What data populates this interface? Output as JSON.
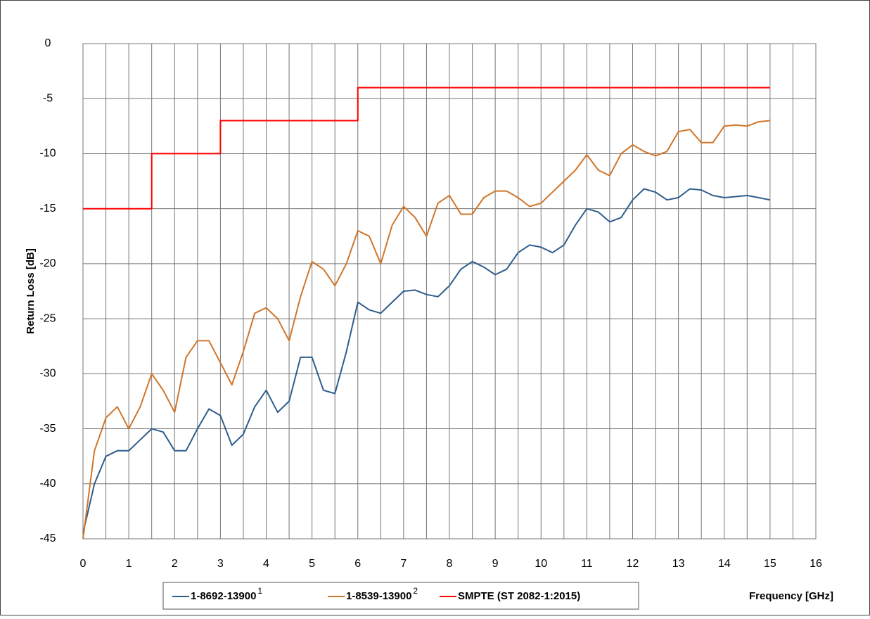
{
  "chart_data": {
    "type": "line",
    "xlabel": "Frequency [GHz]",
    "ylabel": "Return Loss [dB]",
    "xlim": [
      0,
      16
    ],
    "ylim": [
      -45,
      0
    ],
    "xticks": [
      0,
      1,
      2,
      3,
      4,
      5,
      6,
      7,
      8,
      9,
      10,
      11,
      12,
      13,
      14,
      15,
      16
    ],
    "yticks": [
      0,
      -5,
      -10,
      -15,
      -20,
      -25,
      -30,
      -35,
      -40,
      -45
    ],
    "x_minor_gridlines": [
      0.5,
      1.5,
      2.5,
      3.5,
      4.5,
      5.5,
      6.5,
      7.5,
      8.5,
      9.5,
      10.5,
      11.5,
      12.5,
      13.5,
      14.5,
      15.5
    ],
    "grid": true,
    "legend": "bottom",
    "series": [
      {
        "name": "1-8692-13900",
        "superscript": "1",
        "color": "#2e5d8c",
        "x": [
          0,
          0.25,
          0.5,
          0.75,
          1,
          1.25,
          1.5,
          1.75,
          2,
          2.25,
          2.5,
          2.75,
          3,
          3.25,
          3.5,
          3.75,
          4,
          4.25,
          4.5,
          4.75,
          5,
          5.25,
          5.5,
          5.75,
          6,
          6.25,
          6.5,
          6.75,
          7,
          7.25,
          7.5,
          7.75,
          8,
          8.25,
          8.5,
          8.75,
          9,
          9.25,
          9.5,
          9.75,
          10,
          10.25,
          10.5,
          10.75,
          11,
          11.25,
          11.5,
          11.75,
          12,
          12.25,
          12.5,
          12.75,
          13,
          13.25,
          13.5,
          13.75,
          14,
          14.25,
          14.5,
          14.75,
          15
        ],
        "values": [
          -44.5,
          -40,
          -37.5,
          -37,
          -37,
          -36,
          -35,
          -35.3,
          -37,
          -37,
          -35,
          -33.2,
          -33.8,
          -36.5,
          -35.5,
          -33,
          -31.5,
          -33.5,
          -32.5,
          -28.5,
          -28.5,
          -31.5,
          -31.8,
          -28,
          -23.5,
          -24.2,
          -24.5,
          -23.5,
          -22.5,
          -22.4,
          -22.8,
          -23,
          -22,
          -20.5,
          -19.8,
          -20.3,
          -21,
          -20.5,
          -19,
          -18.3,
          -18.5,
          -19,
          -18.3,
          -16.5,
          -15,
          -15.3,
          -16.2,
          -15.8,
          -14.2,
          -13.2,
          -13.5,
          -14.2,
          -14,
          -13.2,
          -13.3,
          -13.8,
          -14,
          -13.9,
          -13.8,
          -14,
          -14.2
        ]
      },
      {
        "name": "1-8539-13900",
        "superscript": "2",
        "color": "#d0752a",
        "x": [
          0,
          0.25,
          0.5,
          0.75,
          1,
          1.25,
          1.5,
          1.75,
          2,
          2.25,
          2.5,
          2.75,
          3,
          3.25,
          3.5,
          3.75,
          4,
          4.25,
          4.5,
          4.75,
          5,
          5.25,
          5.5,
          5.75,
          6,
          6.25,
          6.5,
          6.75,
          7,
          7.25,
          7.5,
          7.75,
          8,
          8.25,
          8.5,
          8.75,
          9,
          9.25,
          9.5,
          9.75,
          10,
          10.25,
          10.5,
          10.75,
          11,
          11.25,
          11.5,
          11.75,
          12,
          12.25,
          12.5,
          12.75,
          13,
          13.25,
          13.5,
          13.75,
          14,
          14.25,
          14.5,
          14.75,
          15
        ],
        "values": [
          -45,
          -37,
          -34,
          -33,
          -35,
          -33,
          -30,
          -31.5,
          -33.5,
          -28.5,
          -27,
          -27,
          -29,
          -31,
          -28,
          -24.5,
          -24,
          -25,
          -27,
          -23,
          -19.8,
          -20.5,
          -22,
          -20,
          -17,
          -17.5,
          -20,
          -16.5,
          -14.8,
          -15.8,
          -17.5,
          -14.5,
          -13.8,
          -15.5,
          -15.5,
          -14,
          -13.4,
          -13.4,
          -14,
          -14.8,
          -14.5,
          -13.5,
          -12.5,
          -11.5,
          -10.1,
          -11.5,
          -12,
          -10,
          -9.2,
          -9.8,
          -10.2,
          -9.8,
          -8,
          -7.8,
          -9,
          -9,
          -7.5,
          -7.4,
          -7.5,
          -7.1,
          -7
        ]
      },
      {
        "name": "SMPTE (ST 2082-1:2015)",
        "color": "#ff0000",
        "x": [
          0,
          1.5,
          1.5,
          3,
          3,
          6,
          6,
          15
        ],
        "values": [
          -15,
          -15,
          -10,
          -10,
          -7,
          -7,
          -4,
          -4
        ]
      }
    ]
  }
}
